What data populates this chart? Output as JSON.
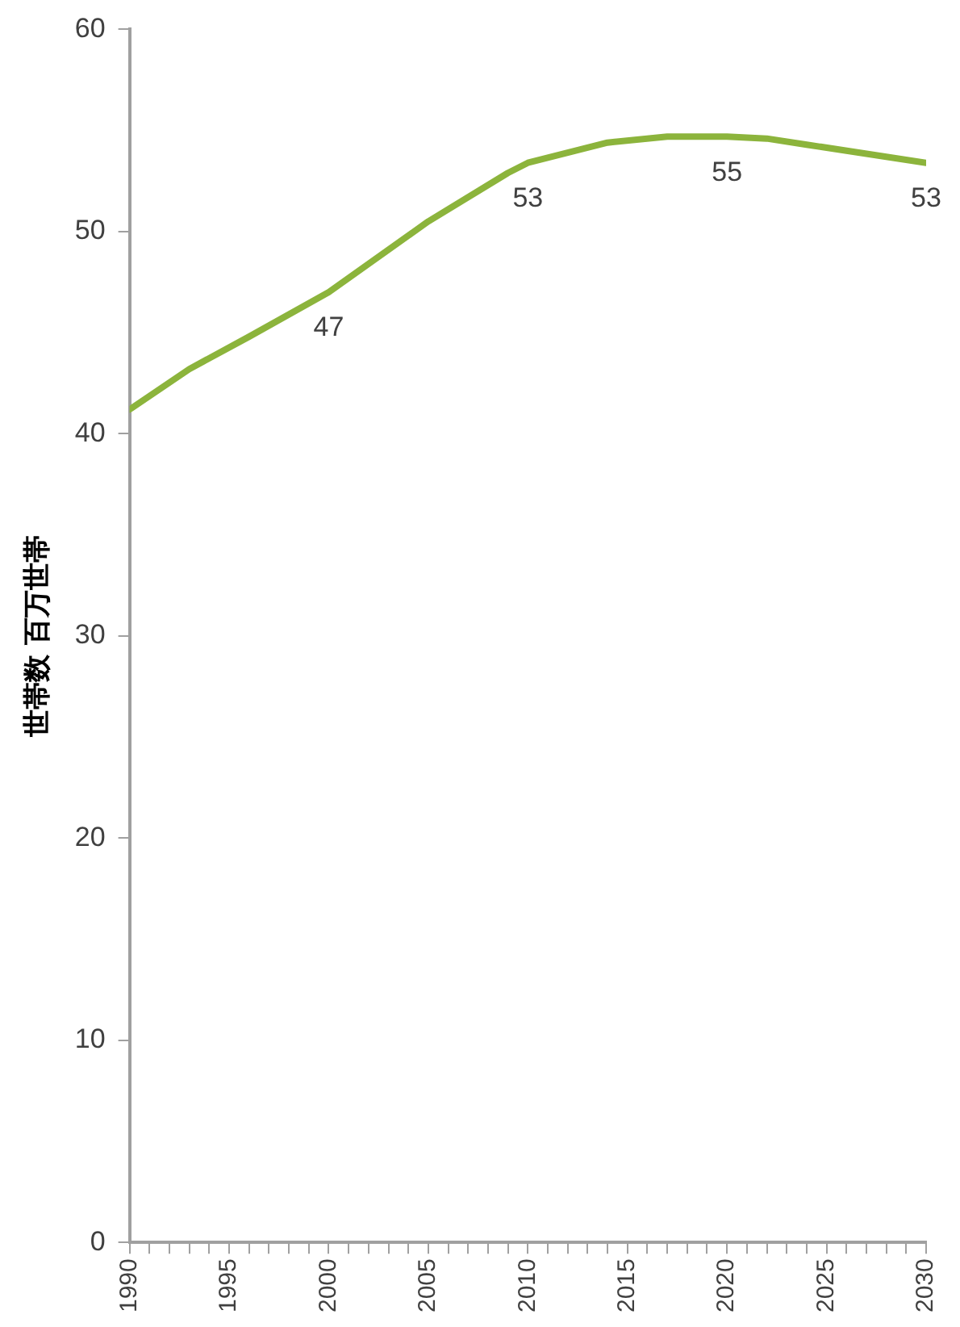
{
  "chart_data": {
    "type": "line",
    "ylabel": "世帯数 百万世帯",
    "x": [
      1990,
      1993,
      1996,
      2000,
      2005,
      2009,
      2010,
      2014,
      2017,
      2020,
      2022,
      2024,
      2030
    ],
    "series": [
      {
        "color": "#8cb43c",
        "values": [
          41.2,
          43.2,
          44.8,
          47.0,
          50.5,
          52.9,
          53.4,
          54.4,
          54.7,
          54.7,
          54.6,
          54.3,
          53.4
        ],
        "value_labels": [
          null,
          null,
          null,
          "47",
          null,
          null,
          "53",
          null,
          null,
          "55",
          null,
          null,
          "53"
        ]
      }
    ],
    "xlim": [
      1990,
      2030
    ],
    "xticks": [
      1990,
      {
        "value": 1991,
        "label": null
      },
      {
        "value": 1992,
        "label": null
      },
      {
        "value": 1993,
        "label": null
      },
      {
        "value": 1994,
        "label": null
      },
      1995,
      {
        "value": 1996,
        "label": null
      },
      {
        "value": 1997,
        "label": null
      },
      {
        "value": 1998,
        "label": null
      },
      {
        "value": 1999,
        "label": null
      },
      2000,
      {
        "value": 2001,
        "label": null
      },
      {
        "value": 2002,
        "label": null
      },
      {
        "value": 2003,
        "label": null
      },
      {
        "value": 2004,
        "label": null
      },
      2005,
      {
        "value": 2006,
        "label": null
      },
      {
        "value": 2007,
        "label": null
      },
      {
        "value": 2008,
        "label": null
      },
      {
        "value": 2009,
        "label": null
      },
      2010,
      {
        "value": 2011,
        "label": null
      },
      {
        "value": 2012,
        "label": null
      },
      {
        "value": 2013,
        "label": null
      },
      {
        "value": 2014,
        "label": null
      },
      2015,
      {
        "value": 2016,
        "label": null
      },
      {
        "value": 2017,
        "label": null
      },
      {
        "value": 2018,
        "label": null
      },
      {
        "value": 2019,
        "label": null
      },
      2020,
      {
        "value": 2021,
        "label": null
      },
      {
        "value": 2022,
        "label": null
      },
      {
        "value": 2023,
        "label": null
      },
      {
        "value": 2024,
        "label": null
      },
      2025,
      {
        "value": 2026,
        "label": null
      },
      {
        "value": 2027,
        "label": null
      },
      {
        "value": 2028,
        "label": null
      },
      {
        "value": 2029,
        "label": null
      },
      2030
    ],
    "ylim": [
      0,
      60
    ],
    "yticks": [
      0,
      10,
      20,
      30,
      40,
      50,
      60
    ],
    "grid": false,
    "legend": false,
    "marker": "none",
    "line_style": "solid"
  }
}
